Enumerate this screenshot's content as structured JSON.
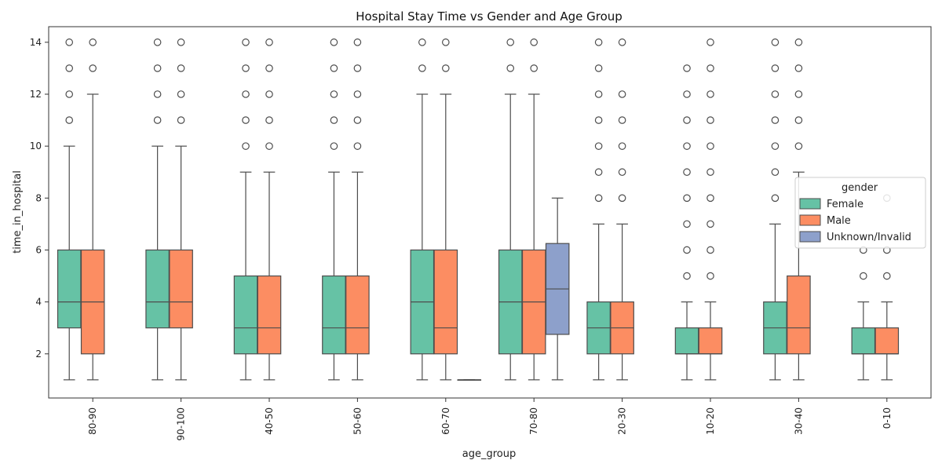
{
  "chart_data": {
    "type": "box",
    "title": "Hospital Stay Time vs Gender and Age Group",
    "xlabel": "age_group",
    "ylabel": "time_in_hospital",
    "ylim": [
      0.3,
      14.6
    ],
    "yticks": [
      2,
      4,
      6,
      8,
      10,
      12,
      14
    ],
    "grid": false,
    "legend_title": "gender",
    "legend_position": "right",
    "categories": [
      "80-90",
      "90-100",
      "40-50",
      "50-60",
      "60-70",
      "70-80",
      "20-30",
      "10-20",
      "30-40",
      "0-10"
    ],
    "series": [
      {
        "name": "Female",
        "color": "#66c2a5",
        "boxes": [
          {
            "category": "80-90",
            "whislo": 1,
            "q1": 3,
            "med": 4,
            "q3": 6,
            "whishi": 10,
            "fliers": [
              11,
              12,
              13,
              14
            ]
          },
          {
            "category": "90-100",
            "whislo": 1,
            "q1": 3,
            "med": 4,
            "q3": 6,
            "whishi": 10,
            "fliers": [
              11,
              12,
              13,
              14
            ]
          },
          {
            "category": "40-50",
            "whislo": 1,
            "q1": 2,
            "med": 3,
            "q3": 5,
            "whishi": 9,
            "fliers": [
              10,
              11,
              12,
              13,
              14
            ]
          },
          {
            "category": "50-60",
            "whislo": 1,
            "q1": 2,
            "med": 3,
            "q3": 5,
            "whishi": 9,
            "fliers": [
              10,
              11,
              12,
              13,
              14
            ]
          },
          {
            "category": "60-70",
            "whislo": 1,
            "q1": 2,
            "med": 4,
            "q3": 6,
            "whishi": 12,
            "fliers": [
              13,
              14
            ]
          },
          {
            "category": "70-80",
            "whislo": 1,
            "q1": 2,
            "med": 4,
            "q3": 6,
            "whishi": 12,
            "fliers": [
              13,
              14
            ]
          },
          {
            "category": "20-30",
            "whislo": 1,
            "q1": 2,
            "med": 3,
            "q3": 4,
            "whishi": 7,
            "fliers": [
              8,
              9,
              10,
              11,
              12,
              13,
              14
            ]
          },
          {
            "category": "10-20",
            "whislo": 1,
            "q1": 2,
            "med": 2,
            "q3": 3,
            "whishi": 4,
            "fliers": [
              5,
              6,
              7,
              8,
              9,
              10,
              11,
              12,
              13
            ]
          },
          {
            "category": "30-40",
            "whislo": 1,
            "q1": 2,
            "med": 3,
            "q3": 4,
            "whishi": 7,
            "fliers": [
              8,
              9,
              10,
              11,
              12,
              13,
              14
            ]
          },
          {
            "category": "0-10",
            "whislo": 1,
            "q1": 2,
            "med": 2,
            "q3": 3,
            "whishi": 4,
            "fliers": [
              5,
              6
            ]
          }
        ]
      },
      {
        "name": "Male",
        "color": "#fc8d62",
        "boxes": [
          {
            "category": "80-90",
            "whislo": 1,
            "q1": 2,
            "med": 4,
            "q3": 6,
            "whishi": 12,
            "fliers": [
              13,
              14
            ]
          },
          {
            "category": "90-100",
            "whislo": 1,
            "q1": 3,
            "med": 4,
            "q3": 6,
            "whishi": 10,
            "fliers": [
              11,
              12,
              13,
              14
            ]
          },
          {
            "category": "40-50",
            "whislo": 1,
            "q1": 2,
            "med": 3,
            "q3": 5,
            "whishi": 9,
            "fliers": [
              10,
              11,
              12,
              13,
              14
            ]
          },
          {
            "category": "50-60",
            "whislo": 1,
            "q1": 2,
            "med": 3,
            "q3": 5,
            "whishi": 9,
            "fliers": [
              10,
              11,
              12,
              13,
              14
            ]
          },
          {
            "category": "60-70",
            "whislo": 1,
            "q1": 2,
            "med": 3,
            "q3": 6,
            "whishi": 12,
            "fliers": [
              13,
              14
            ]
          },
          {
            "category": "70-80",
            "whislo": 1,
            "q1": 2,
            "med": 4,
            "q3": 6,
            "whishi": 12,
            "fliers": [
              13,
              14
            ]
          },
          {
            "category": "20-30",
            "whislo": 1,
            "q1": 2,
            "med": 3,
            "q3": 4,
            "whishi": 7,
            "fliers": [
              8,
              9,
              10,
              11,
              12,
              14
            ]
          },
          {
            "category": "10-20",
            "whislo": 1,
            "q1": 2,
            "med": 2,
            "q3": 3,
            "whishi": 4,
            "fliers": [
              5,
              6,
              7,
              8,
              9,
              10,
              11,
              12,
              13,
              14
            ]
          },
          {
            "category": "30-40",
            "whislo": 1,
            "q1": 2,
            "med": 3,
            "q3": 5,
            "whishi": 9,
            "fliers": [
              10,
              11,
              12,
              13,
              14
            ]
          },
          {
            "category": "0-10",
            "whislo": 1,
            "q1": 2,
            "med": 2,
            "q3": 3,
            "whishi": 4,
            "fliers": [
              5,
              6,
              8
            ]
          }
        ]
      },
      {
        "name": "Unknown/Invalid",
        "color": "#8da0cb",
        "boxes": [
          {
            "category": "60-70",
            "whislo": 1,
            "q1": 1,
            "med": 1,
            "q3": 1,
            "whishi": 1,
            "fliers": []
          },
          {
            "category": "70-80",
            "whislo": 1,
            "q1": 2.75,
            "med": 4.5,
            "q3": 6.25,
            "whishi": 8,
            "fliers": []
          }
        ]
      }
    ]
  }
}
